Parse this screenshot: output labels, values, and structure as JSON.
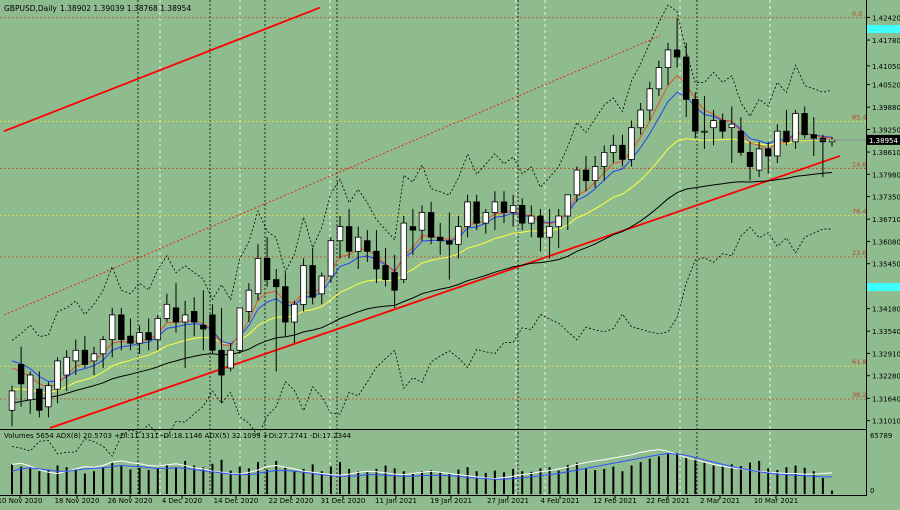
{
  "header": {
    "symbol": "GBPUSD,Daily",
    "ohlc": "1.38902 1.39039 1.38768 1.38954"
  },
  "indicator_label": "Volumes 5654  ADX(8) 20.5703 +DI:11.1311 -DI:18.1146  ADX(5) 32.1099 +DI:27.2741 -DI:17.2344",
  "colors": {
    "background": "#8fbc8f",
    "bull_candle": "#ffffff",
    "bear_candle": "#000000",
    "trendline": "#ff0000",
    "fib_line": "#c04020",
    "ma_red": "#e05030",
    "ma_blue": "#2040ff",
    "ma_yellow": "#ffff40",
    "ma_black": "#000000",
    "price_box": "#000000",
    "cyan_marker": "#40ffff"
  },
  "price_axis": {
    "ticks": [
      "1.42420",
      "1.41780",
      "1.41050",
      "1.40520",
      "1.39880",
      "1.39250",
      "1.38610",
      "1.37980",
      "1.37350",
      "1.36710",
      "1.36080",
      "1.35450",
      "1.34810",
      "1.34180",
      "1.33540",
      "1.32910",
      "1.32280",
      "1.31640",
      "1.31010"
    ],
    "current_price": "1.38954"
  },
  "volume_axis": {
    "ticks": [
      "65789",
      "0"
    ]
  },
  "fib_levels": [
    {
      "label": "0.0",
      "price": 1.4241
    },
    {
      "label": "85.4",
      "price": 1.3948
    },
    {
      "label": "14.6",
      "price": 1.3815
    },
    {
      "label": "76.4",
      "price": 1.3682
    },
    {
      "label": "23.6",
      "price": 1.3564
    },
    {
      "label": "61.8",
      "price": 1.3255
    },
    {
      "label": "38.2",
      "price": 1.3162
    }
  ],
  "date_axis": {
    "ticks": [
      "10 Nov 2020",
      "18 Nov 2020",
      "26 Nov 2020",
      "4 Dec 2020",
      "14 Dec 2020",
      "22 Dec 2020",
      "31 Dec 2020",
      "11 Jan 2021",
      "19 Jan 2021",
      "27 Jan 2021",
      "4 Feb 2021",
      "12 Feb 2021",
      "22 Feb 2021",
      "2 Mar 2021",
      "10 Mar 2021"
    ]
  },
  "chart_data": {
    "type": "candlestick",
    "symbol": "GBPUSD",
    "timeframe": "Daily",
    "y_range": [
      1.308,
      1.428
    ],
    "candles": [
      {
        "o": 1.313,
        "h": 1.32,
        "l": 1.3085,
        "c": 1.3185
      },
      {
        "o": 1.326,
        "h": 1.331,
        "l": 1.314,
        "c": 1.3205
      },
      {
        "o": 1.316,
        "h": 1.324,
        "l": 1.312,
        "c": 1.323
      },
      {
        "o": 1.319,
        "h": 1.324,
        "l": 1.311,
        "c": 1.313
      },
      {
        "o": 1.314,
        "h": 1.321,
        "l": 1.311,
        "c": 1.32
      },
      {
        "o": 1.319,
        "h": 1.328,
        "l": 1.315,
        "c": 1.327
      },
      {
        "o": 1.323,
        "h": 1.33,
        "l": 1.3185,
        "c": 1.328
      },
      {
        "o": 1.327,
        "h": 1.333,
        "l": 1.323,
        "c": 1.33
      },
      {
        "o": 1.33,
        "h": 1.334,
        "l": 1.325,
        "c": 1.326
      },
      {
        "o": 1.327,
        "h": 1.331,
        "l": 1.323,
        "c": 1.329
      },
      {
        "o": 1.329,
        "h": 1.334,
        "l": 1.325,
        "c": 1.333
      },
      {
        "o": 1.333,
        "h": 1.342,
        "l": 1.328,
        "c": 1.34
      },
      {
        "o": 1.34,
        "h": 1.342,
        "l": 1.33,
        "c": 1.333
      },
      {
        "o": 1.334,
        "h": 1.339,
        "l": 1.33,
        "c": 1.332
      },
      {
        "o": 1.332,
        "h": 1.337,
        "l": 1.329,
        "c": 1.335
      },
      {
        "o": 1.335,
        "h": 1.339,
        "l": 1.33,
        "c": 1.333
      },
      {
        "o": 1.333,
        "h": 1.34,
        "l": 1.33,
        "c": 1.339
      },
      {
        "o": 1.339,
        "h": 1.346,
        "l": 1.338,
        "c": 1.343
      },
      {
        "o": 1.342,
        "h": 1.349,
        "l": 1.335,
        "c": 1.338
      },
      {
        "o": 1.338,
        "h": 1.344,
        "l": 1.325,
        "c": 1.34
      },
      {
        "o": 1.341,
        "h": 1.345,
        "l": 1.334,
        "c": 1.338
      },
      {
        "o": 1.337,
        "h": 1.347,
        "l": 1.33,
        "c": 1.336
      },
      {
        "o": 1.34,
        "h": 1.343,
        "l": 1.329,
        "c": 1.33
      },
      {
        "o": 1.33,
        "h": 1.342,
        "l": 1.315,
        "c": 1.323
      },
      {
        "o": 1.325,
        "h": 1.332,
        "l": 1.324,
        "c": 1.33
      },
      {
        "o": 1.33,
        "h": 1.342,
        "l": 1.329,
        "c": 1.342
      },
      {
        "o": 1.341,
        "h": 1.349,
        "l": 1.338,
        "c": 1.347
      },
      {
        "o": 1.346,
        "h": 1.36,
        "l": 1.344,
        "c": 1.356
      },
      {
        "o": 1.356,
        "h": 1.362,
        "l": 1.348,
        "c": 1.35
      },
      {
        "o": 1.35,
        "h": 1.353,
        "l": 1.324,
        "c": 1.348
      },
      {
        "o": 1.348,
        "h": 1.352,
        "l": 1.334,
        "c": 1.338
      },
      {
        "o": 1.338,
        "h": 1.344,
        "l": 1.332,
        "c": 1.343
      },
      {
        "o": 1.343,
        "h": 1.356,
        "l": 1.341,
        "c": 1.354
      },
      {
        "o": 1.354,
        "h": 1.359,
        "l": 1.343,
        "c": 1.345
      },
      {
        "o": 1.346,
        "h": 1.352,
        "l": 1.343,
        "c": 1.351
      },
      {
        "o": 1.351,
        "h": 1.362,
        "l": 1.349,
        "c": 1.361
      },
      {
        "o": 1.361,
        "h": 1.368,
        "l": 1.356,
        "c": 1.365
      },
      {
        "o": 1.365,
        "h": 1.37,
        "l": 1.356,
        "c": 1.358
      },
      {
        "o": 1.358,
        "h": 1.365,
        "l": 1.353,
        "c": 1.362
      },
      {
        "o": 1.361,
        "h": 1.364,
        "l": 1.355,
        "c": 1.358
      },
      {
        "o": 1.358,
        "h": 1.364,
        "l": 1.349,
        "c": 1.353
      },
      {
        "o": 1.354,
        "h": 1.359,
        "l": 1.348,
        "c": 1.35
      },
      {
        "o": 1.352,
        "h": 1.357,
        "l": 1.342,
        "c": 1.347
      },
      {
        "o": 1.35,
        "h": 1.368,
        "l": 1.349,
        "c": 1.366
      },
      {
        "o": 1.365,
        "h": 1.37,
        "l": 1.357,
        "c": 1.364
      },
      {
        "o": 1.364,
        "h": 1.371,
        "l": 1.361,
        "c": 1.369
      },
      {
        "o": 1.369,
        "h": 1.372,
        "l": 1.36,
        "c": 1.362
      },
      {
        "o": 1.362,
        "h": 1.366,
        "l": 1.357,
        "c": 1.361
      },
      {
        "o": 1.361,
        "h": 1.369,
        "l": 1.35,
        "c": 1.36
      },
      {
        "o": 1.36,
        "h": 1.368,
        "l": 1.356,
        "c": 1.365
      },
      {
        "o": 1.365,
        "h": 1.374,
        "l": 1.362,
        "c": 1.372
      },
      {
        "o": 1.372,
        "h": 1.374,
        "l": 1.364,
        "c": 1.366
      },
      {
        "o": 1.366,
        "h": 1.37,
        "l": 1.363,
        "c": 1.369
      },
      {
        "o": 1.369,
        "h": 1.375,
        "l": 1.364,
        "c": 1.372
      },
      {
        "o": 1.372,
        "h": 1.375,
        "l": 1.366,
        "c": 1.369
      },
      {
        "o": 1.369,
        "h": 1.374,
        "l": 1.365,
        "c": 1.371
      },
      {
        "o": 1.371,
        "h": 1.373,
        "l": 1.364,
        "c": 1.366
      },
      {
        "o": 1.366,
        "h": 1.371,
        "l": 1.362,
        "c": 1.368
      },
      {
        "o": 1.368,
        "h": 1.37,
        "l": 1.358,
        "c": 1.362
      },
      {
        "o": 1.362,
        "h": 1.37,
        "l": 1.356,
        "c": 1.365
      },
      {
        "o": 1.365,
        "h": 1.37,
        "l": 1.359,
        "c": 1.368
      },
      {
        "o": 1.368,
        "h": 1.374,
        "l": 1.364,
        "c": 1.374
      },
      {
        "o": 1.374,
        "h": 1.382,
        "l": 1.372,
        "c": 1.381
      },
      {
        "o": 1.381,
        "h": 1.385,
        "l": 1.375,
        "c": 1.378
      },
      {
        "o": 1.378,
        "h": 1.385,
        "l": 1.376,
        "c": 1.382
      },
      {
        "o": 1.382,
        "h": 1.388,
        "l": 1.378,
        "c": 1.386
      },
      {
        "o": 1.386,
        "h": 1.391,
        "l": 1.383,
        "c": 1.388
      },
      {
        "o": 1.388,
        "h": 1.391,
        "l": 1.382,
        "c": 1.384
      },
      {
        "o": 1.384,
        "h": 1.395,
        "l": 1.382,
        "c": 1.393
      },
      {
        "o": 1.393,
        "h": 1.4,
        "l": 1.391,
        "c": 1.398
      },
      {
        "o": 1.398,
        "h": 1.406,
        "l": 1.395,
        "c": 1.404
      },
      {
        "o": 1.404,
        "h": 1.412,
        "l": 1.402,
        "c": 1.41
      },
      {
        "o": 1.41,
        "h": 1.417,
        "l": 1.405,
        "c": 1.415
      },
      {
        "o": 1.415,
        "h": 1.424,
        "l": 1.41,
        "c": 1.413
      },
      {
        "o": 1.413,
        "h": 1.417,
        "l": 1.396,
        "c": 1.401
      },
      {
        "o": 1.401,
        "h": 1.403,
        "l": 1.39,
        "c": 1.392
      },
      {
        "o": 1.392,
        "h": 1.402,
        "l": 1.387,
        "c": 1.392
      },
      {
        "o": 1.393,
        "h": 1.398,
        "l": 1.388,
        "c": 1.395
      },
      {
        "o": 1.395,
        "h": 1.397,
        "l": 1.39,
        "c": 1.392
      },
      {
        "o": 1.393,
        "h": 1.399,
        "l": 1.383,
        "c": 1.394
      },
      {
        "o": 1.392,
        "h": 1.396,
        "l": 1.385,
        "c": 1.386
      },
      {
        "o": 1.386,
        "h": 1.389,
        "l": 1.378,
        "c": 1.382
      },
      {
        "o": 1.381,
        "h": 1.389,
        "l": 1.379,
        "c": 1.387
      },
      {
        "o": 1.387,
        "h": 1.389,
        "l": 1.38,
        "c": 1.385
      },
      {
        "o": 1.385,
        "h": 1.394,
        "l": 1.383,
        "c": 1.392
      },
      {
        "o": 1.392,
        "h": 1.398,
        "l": 1.388,
        "c": 1.389
      },
      {
        "o": 1.389,
        "h": 1.398,
        "l": 1.387,
        "c": 1.397
      },
      {
        "o": 1.397,
        "h": 1.399,
        "l": 1.39,
        "c": 1.391
      },
      {
        "o": 1.391,
        "h": 1.396,
        "l": 1.385,
        "c": 1.39
      },
      {
        "o": 1.39,
        "h": 1.391,
        "l": 1.379,
        "c": 1.389
      },
      {
        "o": 1.389,
        "h": 1.3904,
        "l": 1.3877,
        "c": 1.38954
      }
    ],
    "ma_red": [
      1.325,
      1.324,
      1.3225,
      1.3205,
      1.3195,
      1.3205,
      1.323,
      1.3255,
      1.3262,
      1.3272,
      1.329,
      1.332,
      1.3325,
      1.3322,
      1.3328,
      1.3329,
      1.3347,
      1.3378,
      1.3379,
      1.3383,
      1.3383,
      1.3376,
      1.3357,
      1.3317,
      1.3312,
      1.3343,
      1.3385,
      1.3443,
      1.3462,
      1.3467,
      1.3438,
      1.3434,
      1.3466,
      1.3461,
      1.3477,
      1.3522,
      1.3565,
      1.357,
      1.3587,
      1.3585,
      1.3567,
      1.3545,
      1.352,
      1.3567,
      1.3591,
      1.3624,
      1.3623,
      1.3619,
      1.3613,
      1.3625,
      1.3657,
      1.3658,
      1.3669,
      1.3686,
      1.3688,
      1.3695,
      1.3683,
      1.3682,
      1.3662,
      1.3658,
      1.3665,
      1.3692,
      1.3738,
      1.3752,
      1.3775,
      1.3803,
      1.3829,
      1.3834,
      1.3866,
      1.3904,
      1.3949,
      1.4,
      1.405,
      1.4077,
      1.4055,
      1.401,
      1.398,
      1.3968,
      1.3952,
      1.3948,
      1.3919,
      1.3886,
      1.3881,
      1.387,
      1.3886,
      1.3887,
      1.3915,
      1.3913,
      1.3909,
      1.3903,
      1.3901
    ],
    "ma_blue": [
      1.327,
      1.3262,
      1.3248,
      1.3226,
      1.3212,
      1.3212,
      1.3225,
      1.3242,
      1.3248,
      1.3257,
      1.3272,
      1.33,
      1.331,
      1.3313,
      1.332,
      1.3323,
      1.3338,
      1.3362,
      1.3366,
      1.3372,
      1.3375,
      1.3372,
      1.3357,
      1.3325,
      1.3318,
      1.3339,
      1.337,
      1.3417,
      1.3436,
      1.3446,
      1.3427,
      1.3427,
      1.3452,
      1.3451,
      1.3465,
      1.35,
      1.3537,
      1.3546,
      1.3563,
      1.3567,
      1.3557,
      1.3542,
      1.3524,
      1.356,
      1.358,
      1.3609,
      1.3611,
      1.3611,
      1.3608,
      1.3618,
      1.3646,
      1.3649,
      1.366,
      1.3676,
      1.368,
      1.3688,
      1.368,
      1.368,
      1.3664,
      1.3661,
      1.3666,
      1.3688,
      1.3725,
      1.3737,
      1.3757,
      1.3782,
      1.3806,
      1.3813,
      1.3841,
      1.3874,
      1.3913,
      1.3958,
      1.4004,
      1.403,
      1.4018,
      1.3989,
      1.3967,
      1.3962,
      1.395,
      1.3948,
      1.3925,
      1.3899,
      1.3893,
      1.3884,
      1.3896,
      1.3894,
      1.3914,
      1.3913,
      1.391,
      1.3905,
      1.3903
    ],
    "ma_yellow": [
      1.319,
      1.319,
      1.3188,
      1.3182,
      1.318,
      1.3186,
      1.3197,
      1.321,
      1.3216,
      1.3225,
      1.3238,
      1.3256,
      1.3265,
      1.3272,
      1.328,
      1.3286,
      1.3298,
      1.3313,
      1.332,
      1.3328,
      1.3334,
      1.3337,
      1.3334,
      1.3321,
      1.3319,
      1.3329,
      1.3345,
      1.337,
      1.3384,
      1.3394,
      1.3393,
      1.3397,
      1.3411,
      1.3415,
      1.3424,
      1.3443,
      1.3464,
      1.3475,
      1.3488,
      1.3496,
      1.3499,
      1.3499,
      1.3496,
      1.3515,
      1.3529,
      1.3547,
      1.3554,
      1.356,
      1.3564,
      1.3573,
      1.3589,
      1.3596,
      1.3605,
      1.3616,
      1.3623,
      1.3631,
      1.3634,
      1.3638,
      1.3636,
      1.3638,
      1.3643,
      1.3655,
      1.3675,
      1.3686,
      1.37,
      1.3716,
      1.3733,
      1.3742,
      1.376,
      1.3782,
      1.3808,
      1.3838,
      1.387,
      1.3892,
      1.3899,
      1.3896,
      1.3894,
      1.3896,
      1.3896,
      1.3898,
      1.3894,
      1.3886,
      1.3884,
      1.3881,
      1.3885,
      1.3885,
      1.3892,
      1.3893,
      1.3894,
      1.3893,
      1.3893
    ],
    "ma_black": [
      1.315,
      1.3155,
      1.316,
      1.3163,
      1.3166,
      1.3171,
      1.3178,
      1.3186,
      1.3193,
      1.32,
      1.3208,
      1.3219,
      1.3226,
      1.3232,
      1.3239,
      1.3245,
      1.3253,
      1.3263,
      1.327,
      1.3277,
      1.3283,
      1.3288,
      1.329,
      1.3287,
      1.3288,
      1.3294,
      1.3303,
      1.3317,
      1.3327,
      1.3335,
      1.3338,
      1.3343,
      1.3352,
      1.3357,
      1.3364,
      1.3376,
      1.339,
      1.3399,
      1.3409,
      1.3417,
      1.3422,
      1.3425,
      1.3427,
      1.3438,
      1.3448,
      1.346,
      1.3467,
      1.3473,
      1.3478,
      1.3486,
      1.3497,
      1.3504,
      1.3512,
      1.3521,
      1.3528,
      1.3536,
      1.3541,
      1.3546,
      1.3548,
      1.3552,
      1.3557,
      1.3566,
      1.358,
      1.359,
      1.3601,
      1.3614,
      1.3627,
      1.3636,
      1.365,
      1.3666,
      1.3685,
      1.3706,
      1.3729,
      1.3746,
      1.3756,
      1.376,
      1.3764,
      1.3768,
      1.3771,
      1.3775,
      1.3777,
      1.3776,
      1.3778,
      1.3779,
      1.3783,
      1.3786,
      1.3792,
      1.3795,
      1.3798,
      1.3801,
      1.3803
    ],
    "volume_range": [
      0,
      65789
    ],
    "volumes": [
      52,
      48,
      45,
      40,
      43,
      50,
      47,
      44,
      36,
      40,
      47,
      55,
      50,
      43,
      46,
      42,
      45,
      51,
      47,
      58,
      50,
      47,
      53,
      60,
      41,
      48,
      45,
      56,
      43,
      58,
      47,
      40,
      44,
      52,
      40,
      48,
      56,
      44,
      40,
      38,
      44,
      50,
      45,
      40,
      36,
      40,
      42,
      38,
      36,
      43,
      47,
      40,
      37,
      41,
      38,
      44,
      40,
      39,
      45,
      47,
      41,
      51,
      55,
      45,
      42,
      44,
      48,
      40,
      50,
      56,
      62,
      66,
      70,
      72,
      65,
      62,
      55,
      50,
      48,
      52,
      49,
      55,
      58,
      45,
      42,
      47,
      50,
      46,
      40,
      28,
      6
    ],
    "adx_white": [
      52,
      54,
      49,
      43,
      38,
      36,
      40,
      44,
      48,
      47,
      50,
      56,
      58,
      55,
      53,
      50,
      49,
      51,
      53,
      50,
      46,
      44,
      40,
      38,
      36,
      35,
      38,
      42,
      48,
      50,
      47,
      44,
      40,
      38,
      36,
      34,
      33,
      35,
      38,
      40,
      39,
      37,
      35,
      34,
      36,
      38,
      40,
      38,
      36,
      34,
      32,
      30,
      28,
      27,
      29,
      31,
      34,
      36,
      39,
      41,
      44,
      47,
      52,
      55,
      58,
      60,
      63,
      66,
      69,
      73,
      76,
      78,
      75,
      70,
      64,
      60,
      56,
      52,
      49,
      46,
      44,
      42,
      40,
      38,
      37,
      36,
      36,
      35,
      35,
      36,
      37
    ],
    "adx_blue": [
      40,
      44,
      46,
      44,
      42,
      40,
      40,
      42,
      44,
      45,
      46,
      48,
      50,
      49,
      48,
      46,
      45,
      45,
      46,
      45,
      43,
      41,
      39,
      37,
      35,
      34,
      34,
      36,
      39,
      41,
      41,
      40,
      38,
      36,
      34,
      32,
      31,
      31,
      32,
      34,
      34,
      33,
      32,
      31,
      31,
      32,
      33,
      33,
      32,
      31,
      29,
      28,
      27,
      26,
      26,
      27,
      28,
      30,
      32,
      34,
      36,
      39,
      42,
      45,
      48,
      51,
      54,
      57,
      60,
      63,
      66,
      69,
      71,
      70,
      68,
      64,
      60,
      56,
      52,
      48,
      45,
      42,
      39,
      37,
      35,
      34,
      33,
      32,
      31,
      30,
      30
    ]
  }
}
